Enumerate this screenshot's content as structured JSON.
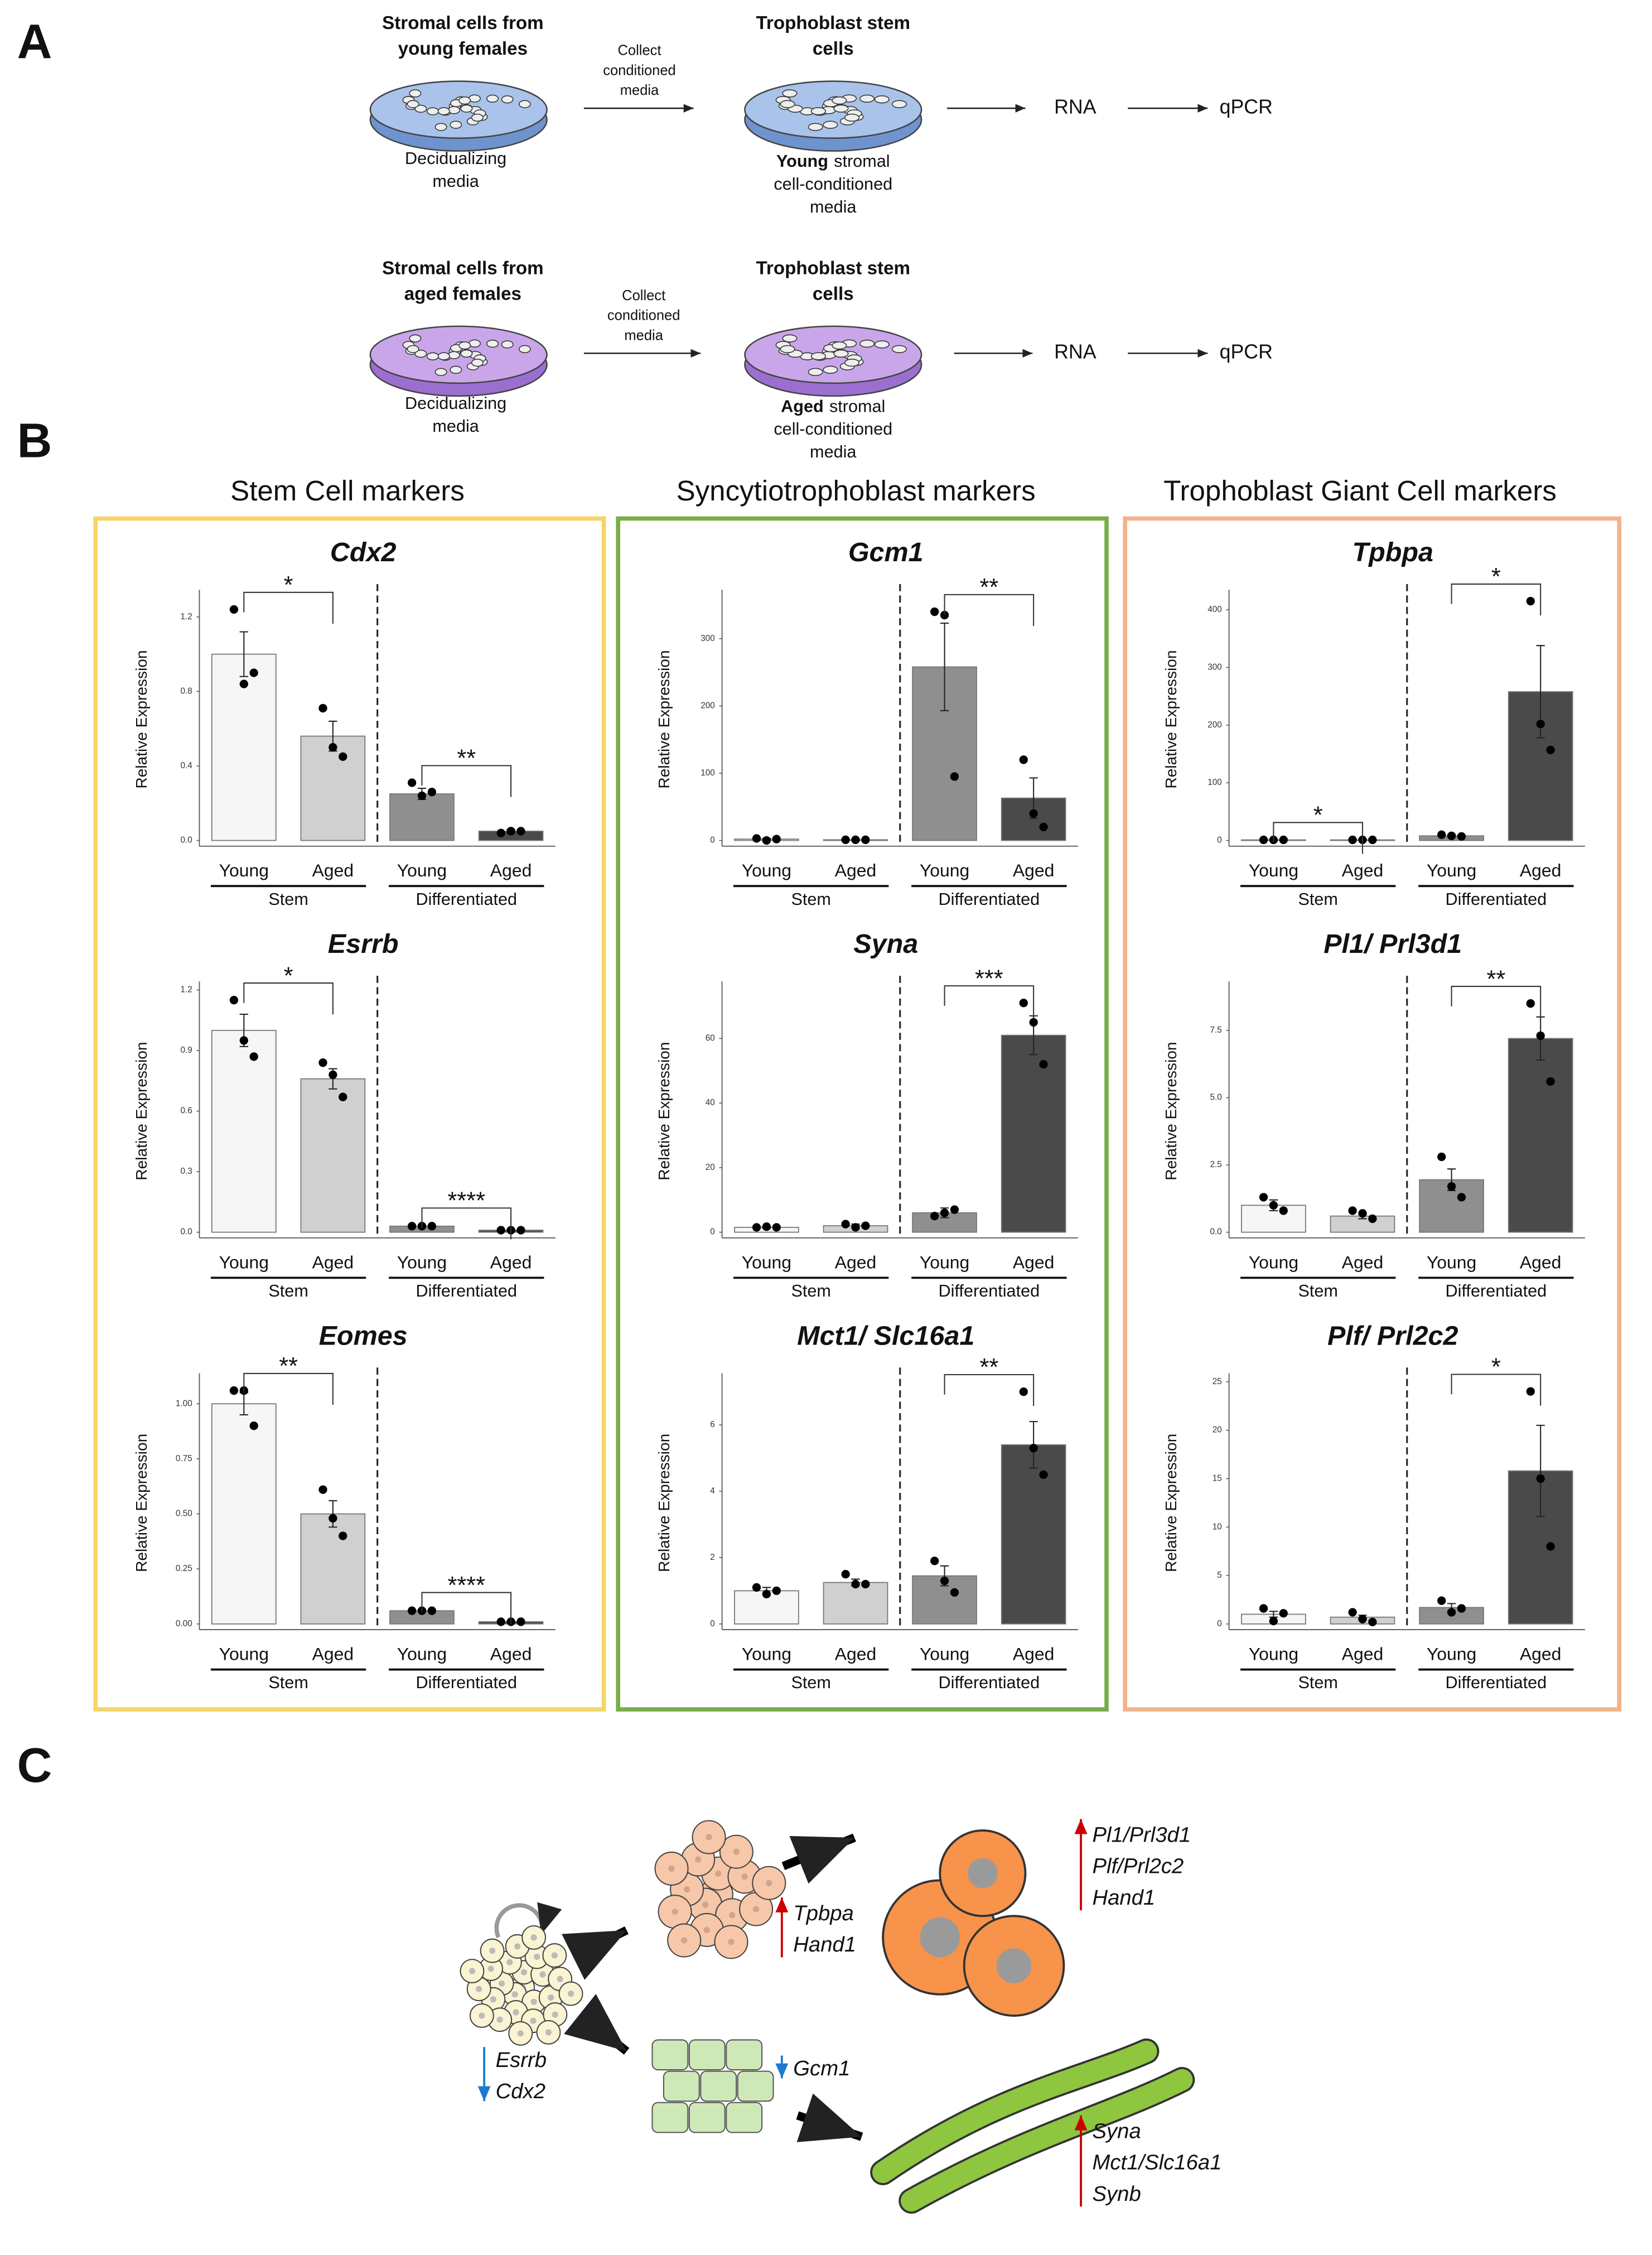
{
  "panel_labels": [
    "A",
    "B",
    "C"
  ],
  "panel_a": {
    "rows": [
      {
        "source": [
          "Stromal cells from",
          "young females"
        ],
        "media": [
          "Decidualizing",
          "media"
        ],
        "collect": [
          "Collect",
          "conditioned",
          "media"
        ],
        "target": [
          "Trophoblast stem",
          "cells"
        ],
        "condition": "Young",
        "target_media": [
          "stromal",
          "cell-conditioned",
          "media"
        ],
        "rna": "RNA",
        "qpcr": "qPCR"
      },
      {
        "source": [
          "Stromal cells from",
          "aged females"
        ],
        "media": [
          "Decidualizing",
          "media"
        ],
        "collect": [
          "Collect",
          "conditioned",
          "media"
        ],
        "target": [
          "Trophoblast stem",
          "cells"
        ],
        "condition": "Aged",
        "target_media": [
          "stromal",
          "cell-conditioned",
          "media"
        ],
        "rna": "RNA",
        "qpcr": "qPCR"
      }
    ]
  },
  "panel_b": {
    "columns": [
      "Stem Cell markers",
      "Syncytiotrophoblast markers",
      "Trophoblast Giant Cell markers"
    ]
  },
  "chart_data": [
    {
      "type": "bar",
      "title": "Cdx2",
      "ylabel": "Relative Expression",
      "categories": [
        "Young",
        "Aged",
        "Young",
        "Aged"
      ],
      "groups": [
        "Stem",
        "Differentiated"
      ],
      "values": [
        1.0,
        0.56,
        0.25,
        0.05
      ],
      "errors": [
        0.12,
        0.08,
        0.03,
        0.01
      ],
      "points": [
        [
          1.24,
          0.84,
          0.9
        ],
        [
          0.71,
          0.5,
          0.45
        ],
        [
          0.31,
          0.24,
          0.26
        ],
        [
          0.04,
          0.05,
          0.05
        ]
      ],
      "ylim": [
        0,
        1.3
      ],
      "yticks": [
        {
          "value": 0,
          "label": "0.0"
        },
        0.4,
        0.8,
        1.2
      ],
      "significance": [
        {
          "pair": [
            0,
            1
          ],
          "label": "*"
        },
        {
          "pair": [
            2,
            3
          ],
          "label": "**"
        }
      ]
    },
    {
      "type": "bar",
      "title": "Esrrb",
      "ylabel": "Relative Expression",
      "categories": [
        "Young",
        "Aged",
        "Young",
        "Aged"
      ],
      "groups": [
        "Stem",
        "Differentiated"
      ],
      "values": [
        1.0,
        0.76,
        0.03,
        0.01
      ],
      "errors": [
        0.08,
        0.05,
        0.005,
        0.003
      ],
      "points": [
        [
          1.15,
          0.95,
          0.87
        ],
        [
          0.84,
          0.78,
          0.67
        ],
        [
          0.03,
          0.03,
          0.03
        ],
        [
          0.01,
          0.01,
          0.01
        ]
      ],
      "ylim": [
        0,
        1.2
      ],
      "yticks": [
        {
          "value": 0,
          "label": "0.0"
        },
        0.3,
        0.6,
        0.9,
        1.2
      ],
      "significance": [
        {
          "pair": [
            0,
            1
          ],
          "label": "*"
        },
        {
          "pair": [
            2,
            3
          ],
          "label": "****"
        }
      ]
    },
    {
      "type": "bar",
      "title": "Eomes",
      "ylabel": "Relative Expression",
      "categories": [
        "Young",
        "Aged",
        "Young",
        "Aged"
      ],
      "groups": [
        "Stem",
        "Differentiated"
      ],
      "values": [
        1.0,
        0.5,
        0.06,
        0.01
      ],
      "errors": [
        0.05,
        0.06,
        0.005,
        0.002
      ],
      "points": [
        [
          1.06,
          1.06,
          0.9
        ],
        [
          0.61,
          0.48,
          0.4
        ],
        [
          0.06,
          0.06,
          0.06
        ],
        [
          0.01,
          0.01,
          0.01
        ]
      ],
      "ylim": [
        0,
        1.1
      ],
      "yticks": [
        {
          "value": 0,
          "label": "0.00"
        },
        0.25,
        {
          "value": 0.5,
          "label": "0.50"
        },
        0.75,
        {
          "value": 1,
          "label": "1.00"
        }
      ],
      "significance": [
        {
          "pair": [
            0,
            1
          ],
          "label": "**"
        },
        {
          "pair": [
            2,
            3
          ],
          "label": "****"
        }
      ]
    },
    {
      "type": "bar",
      "title": "Gcm1",
      "ylabel": "Relative Expression",
      "categories": [
        "Young",
        "Aged",
        "Young",
        "Aged"
      ],
      "groups": [
        "Stem",
        "Differentiated"
      ],
      "values": [
        2,
        1,
        258,
        63
      ],
      "errors": [
        1,
        0.5,
        65,
        30
      ],
      "points": [
        [
          3,
          0,
          2
        ],
        [
          1,
          1,
          1
        ],
        [
          340,
          335,
          95
        ],
        [
          120,
          40,
          20
        ]
      ],
      "ylim": [
        0,
        360
      ],
      "yticks": [
        0,
        100,
        200,
        300
      ],
      "significance": [
        {
          "pair": [
            2,
            3
          ],
          "label": "**"
        }
      ]
    },
    {
      "type": "bar",
      "title": "Syna",
      "ylabel": "Relative Expression",
      "categories": [
        "Young",
        "Aged",
        "Young",
        "Aged"
      ],
      "groups": [
        "Stem",
        "Differentiated"
      ],
      "values": [
        1.5,
        2,
        6,
        61
      ],
      "errors": [
        0.3,
        0.5,
        1.5,
        6
      ],
      "points": [
        [
          1.5,
          1.7,
          1.5
        ],
        [
          2.5,
          1.5,
          2
        ],
        [
          5,
          6,
          7
        ],
        [
          71,
          65,
          52
        ]
      ],
      "ylim": [
        0,
        75
      ],
      "yticks": [
        0,
        20,
        40,
        60
      ],
      "significance": [
        {
          "pair": [
            2,
            3
          ],
          "label": "***"
        }
      ]
    },
    {
      "type": "bar",
      "title": "Mct1/ Slc16a1",
      "ylabel": "Relative Expression",
      "categories": [
        "Young",
        "Aged",
        "Young",
        "Aged"
      ],
      "groups": [
        "Stem",
        "Differentiated"
      ],
      "values": [
        1.0,
        1.25,
        1.45,
        5.4
      ],
      "errors": [
        0.1,
        0.1,
        0.3,
        0.7
      ],
      "points": [
        [
          1.1,
          0.9,
          1.0
        ],
        [
          1.5,
          1.2,
          1.2
        ],
        [
          1.9,
          1.3,
          0.95
        ],
        [
          7.0,
          5.3,
          4.5
        ]
      ],
      "ylim": [
        0,
        7.3
      ],
      "yticks": [
        0,
        2,
        4,
        6
      ],
      "significance": [
        {
          "pair": [
            2,
            3
          ],
          "label": "**"
        }
      ]
    },
    {
      "type": "bar",
      "title": "Tpbpa",
      "ylabel": "Relative Expression",
      "categories": [
        "Young",
        "Aged",
        "Young",
        "Aged"
      ],
      "groups": [
        "Stem",
        "Differentiated"
      ],
      "values": [
        1,
        1,
        8,
        258
      ],
      "errors": [
        0.5,
        0.5,
        2,
        80
      ],
      "points": [
        [
          1,
          1,
          1
        ],
        [
          1,
          1,
          1
        ],
        [
          10,
          8,
          7
        ],
        [
          415,
          202,
          157
        ]
      ],
      "ylim": [
        0,
        420
      ],
      "yticks": [
        0,
        100,
        200,
        300,
        400
      ],
      "significance": [
        {
          "pair": [
            0,
            1
          ],
          "label": "*"
        },
        {
          "pair": [
            2,
            3
          ],
          "label": "*"
        }
      ]
    },
    {
      "type": "bar",
      "title": "Pl1/ Prl3d1",
      "ylabel": "Relative Expression",
      "categories": [
        "Young",
        "Aged",
        "Young",
        "Aged"
      ],
      "groups": [
        "Stem",
        "Differentiated"
      ],
      "values": [
        1.0,
        0.6,
        1.95,
        7.2
      ],
      "errors": [
        0.2,
        0.1,
        0.4,
        0.8
      ],
      "points": [
        [
          1.3,
          1.0,
          0.8
        ],
        [
          0.8,
          0.7,
          0.5
        ],
        [
          2.8,
          1.7,
          1.3
        ],
        [
          8.5,
          7.3,
          5.6
        ]
      ],
      "ylim": [
        0,
        9
      ],
      "yticks": [
        {
          "value": 0,
          "label": "0.0"
        },
        2.5,
        {
          "value": 5,
          "label": "5.0"
        },
        7.5
      ],
      "significance": [
        {
          "pair": [
            2,
            3
          ],
          "label": "**"
        }
      ]
    },
    {
      "type": "bar",
      "title": "Plf/ Prl2c2",
      "ylabel": "Relative Expression",
      "categories": [
        "Young",
        "Aged",
        "Young",
        "Aged"
      ],
      "groups": [
        "Stem",
        "Differentiated"
      ],
      "values": [
        1.0,
        0.7,
        1.7,
        15.8
      ],
      "errors": [
        0.3,
        0.2,
        0.4,
        4.7
      ],
      "points": [
        [
          1.6,
          0.3,
          1.1
        ],
        [
          1.2,
          0.5,
          0.2
        ],
        [
          2.4,
          1.2,
          1.6
        ],
        [
          24,
          15,
          8
        ]
      ],
      "ylim": [
        0,
        25
      ],
      "yticks": [
        0,
        5,
        10,
        15,
        20,
        25
      ],
      "significance": [
        {
          "pair": [
            2,
            3
          ],
          "label": "*"
        }
      ]
    }
  ],
  "panel_c": {
    "stem_down": [
      "Esrrb",
      "Cdx2"
    ],
    "spongio_up": [
      "Tpbpa",
      "Hand1"
    ],
    "tgc_up": [
      "Pl1/Prl3d1",
      "Plf/Prl2c2",
      "Hand1"
    ],
    "syn_down": [
      "Gcm1"
    ],
    "syn_up": [
      "Syna",
      "Mct1/Slc16a1",
      "Synb"
    ]
  }
}
